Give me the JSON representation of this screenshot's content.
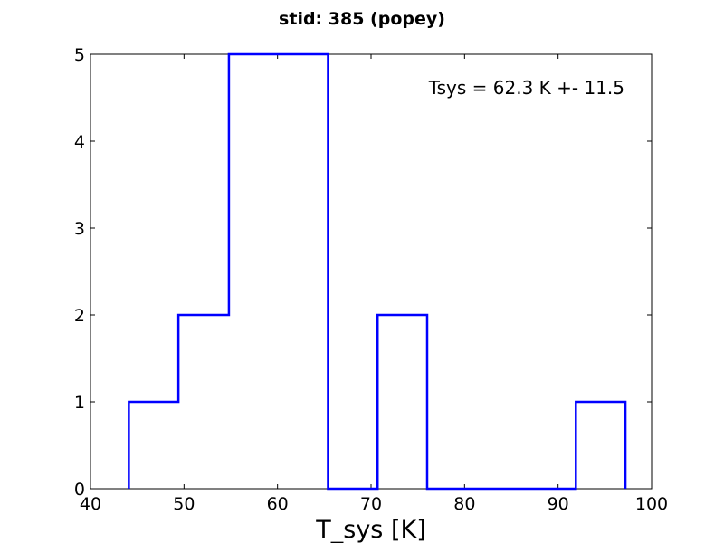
{
  "chart_data": {
    "type": "histogram-step",
    "title": "stid: 385 (popey)",
    "xlabel": "T_sys [K]",
    "ylabel": "",
    "xlim": [
      40,
      100
    ],
    "ylim": [
      0,
      5
    ],
    "xticks": [
      40,
      50,
      60,
      70,
      80,
      90,
      100
    ],
    "yticks": [
      0,
      1,
      2,
      3,
      4,
      5
    ],
    "bin_edges": [
      44.1,
      49.4,
      54.8,
      60.1,
      65.4,
      70.7,
      76.0,
      81.3,
      86.6,
      91.9,
      97.2
    ],
    "counts": [
      1,
      2,
      5,
      5,
      0,
      2,
      0,
      0,
      0,
      1
    ],
    "line_color": "#0000ff",
    "annotation": "Tsys = 62.3 K +- 11.5",
    "annotation_position": "top-right",
    "grid": false
  }
}
